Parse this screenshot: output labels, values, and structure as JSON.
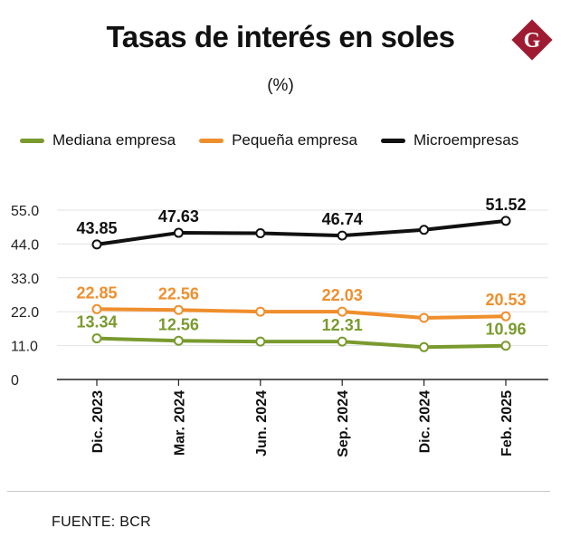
{
  "header": {
    "title": "Tasas de interés en soles",
    "subtitle": "(%)",
    "logo_letter": "G"
  },
  "footer": {
    "source": "FUENTE: BCR"
  },
  "chart_data": {
    "type": "line",
    "title": "Tasas de interés en soles",
    "subtitle": "(%)",
    "xlabel": "",
    "ylabel": "",
    "categories": [
      "Dic. 2023",
      "Mar. 2024",
      "Jun. 2024",
      "Sep. 2024",
      "Dic. 2024",
      "Feb. 2025"
    ],
    "ylim": [
      0,
      55
    ],
    "yticks": [
      0,
      11.0,
      22.0,
      33.0,
      44.0,
      55.0
    ],
    "ytick_labels": [
      "0",
      "11.0",
      "22.0",
      "33.0",
      "44.0",
      "55.0"
    ],
    "grid": true,
    "legend_position": "top",
    "series": [
      {
        "name": "Mediana empresa",
        "color": "#7a9a2e",
        "values": [
          13.34,
          12.56,
          12.31,
          12.31,
          10.5,
          10.96
        ],
        "labels": [
          "13.34",
          "12.56",
          "",
          "12.31",
          "",
          "10.96"
        ]
      },
      {
        "name": "Pequeña empresa",
        "color": "#ef8e2c",
        "values": [
          22.85,
          22.56,
          22.03,
          22.03,
          20.0,
          20.53
        ],
        "labels": [
          "22.85",
          "22.56",
          "",
          "22.03",
          "",
          "20.53"
        ]
      },
      {
        "name": "Microempresas",
        "color": "#111111",
        "values": [
          43.85,
          47.63,
          47.5,
          46.74,
          48.6,
          51.52
        ],
        "labels": [
          "43.85",
          "47.63",
          "",
          "46.74",
          "",
          "51.52"
        ]
      }
    ]
  },
  "colors": {
    "grid": "#e3e3e3",
    "axis": "#222222",
    "logo_bg": "#9e1b32"
  }
}
